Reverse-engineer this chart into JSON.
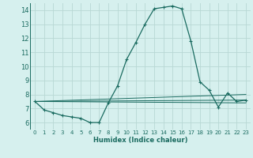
{
  "xlabel": "Humidex (Indice chaleur)",
  "bg_color": "#d6f0ee",
  "grid_color": "#b8d8d4",
  "line_color": "#1a6b60",
  "xlim": [
    -0.5,
    23.5
  ],
  "ylim": [
    5.5,
    14.5
  ],
  "yticks": [
    6,
    7,
    8,
    9,
    10,
    11,
    12,
    13,
    14
  ],
  "xticks": [
    0,
    1,
    2,
    3,
    4,
    5,
    6,
    7,
    8,
    9,
    10,
    11,
    12,
    13,
    14,
    15,
    16,
    17,
    18,
    19,
    20,
    21,
    22,
    23
  ],
  "series_main": {
    "x": [
      0,
      1,
      2,
      3,
      4,
      5,
      6,
      7,
      8,
      9,
      10,
      11,
      12,
      13,
      14,
      15,
      16,
      17,
      18,
      19,
      20,
      21,
      22,
      23
    ],
    "y": [
      7.5,
      6.9,
      6.7,
      6.5,
      6.4,
      6.3,
      6.0,
      6.0,
      7.4,
      8.6,
      10.5,
      11.7,
      13.0,
      14.1,
      14.2,
      14.3,
      14.1,
      11.8,
      8.9,
      8.3,
      7.1,
      8.1,
      7.5,
      7.6
    ]
  },
  "trend_lines": [
    {
      "x": [
        0,
        23
      ],
      "y": [
        7.5,
        8.0
      ]
    },
    {
      "x": [
        0,
        23
      ],
      "y": [
        7.5,
        7.6
      ]
    },
    {
      "x": [
        0,
        23
      ],
      "y": [
        7.5,
        7.4
      ]
    }
  ]
}
